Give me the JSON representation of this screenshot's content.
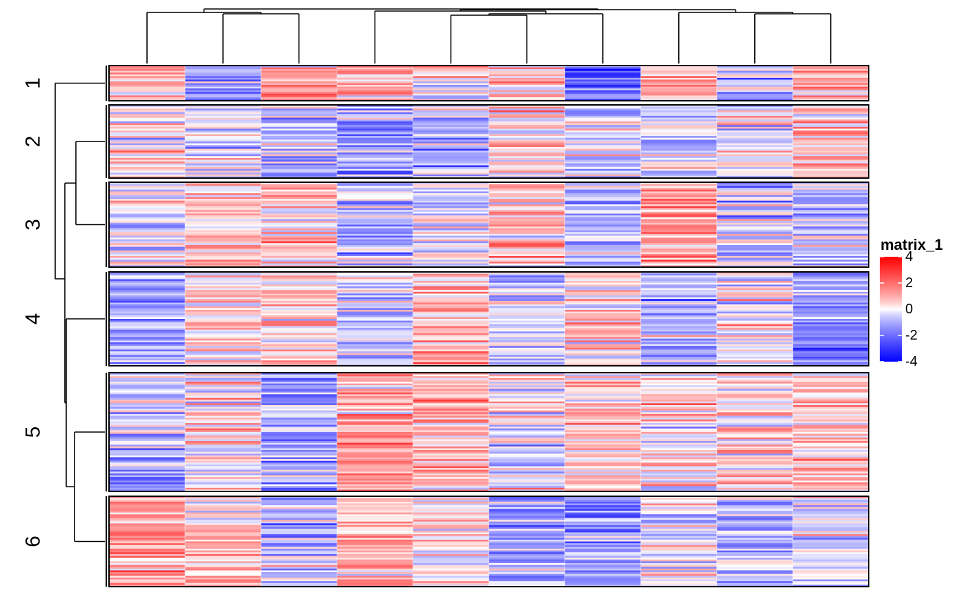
{
  "chart_data": {
    "type": "heatmap",
    "title": "",
    "xlabel": "",
    "ylabel": "",
    "n_columns": 10,
    "column_dendrogram": true,
    "row_dendrogram": true,
    "row_slices": [
      {
        "label": "1",
        "n_rows": 20,
        "column_means": [
          0.8,
          -1.5,
          1.2,
          1.0,
          0.3,
          0.5,
          -2.2,
          0.6,
          -0.8,
          1.4
        ]
      },
      {
        "label": "2",
        "n_rows": 40,
        "column_means": [
          0.2,
          -0.3,
          -0.6,
          -1.4,
          -0.8,
          0.4,
          -0.5,
          -0.4,
          -0.2,
          0.6
        ]
      },
      {
        "label": "3",
        "n_rows": 46,
        "column_means": [
          -0.5,
          0.4,
          0.6,
          -0.8,
          -0.2,
          0.7,
          -1.0,
          1.5,
          -0.6,
          -0.7
        ]
      },
      {
        "label": "4",
        "n_rows": 52,
        "column_means": [
          -0.9,
          0.3,
          0.5,
          -0.6,
          0.8,
          -0.4,
          0.7,
          -1.2,
          0.2,
          -1.5
        ]
      },
      {
        "label": "5",
        "n_rows": 66,
        "column_means": [
          -0.7,
          0.4,
          -1.1,
          1.2,
          0.7,
          -0.2,
          0.5,
          0.3,
          0.5,
          0.6
        ]
      },
      {
        "label": "6",
        "n_rows": 50,
        "column_means": [
          1.3,
          0.6,
          -0.8,
          0.9,
          0.2,
          -1.0,
          -1.3,
          -0.3,
          -0.6,
          -0.4
        ]
      }
    ],
    "row_slice_order": [
      "1",
      "2",
      "3",
      "4",
      "5",
      "6"
    ],
    "colorbar": {
      "title": "matrix_1",
      "ticks": [
        4,
        2,
        0,
        -2,
        -4
      ],
      "range": [
        -4,
        4
      ],
      "colors": {
        "low": "#0000FF",
        "mid": "#FFFFFF",
        "high": "#FF0000"
      }
    }
  }
}
